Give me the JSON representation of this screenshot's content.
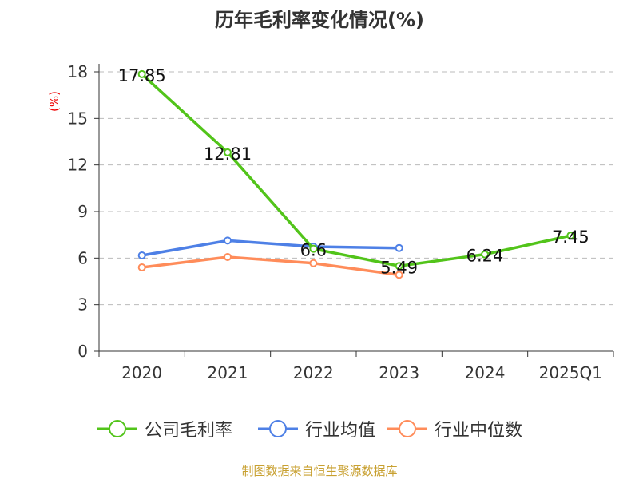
{
  "chart_data": {
    "type": "line",
    "title": "历年毛利率变化情况(%)",
    "ylabel": "(%)",
    "xlabel": "",
    "categories": [
      "2020",
      "2021",
      "2022",
      "2023",
      "2024",
      "2025Q1"
    ],
    "ylim": [
      0,
      18
    ],
    "yticks": [
      0,
      3,
      6,
      9,
      12,
      15,
      18
    ],
    "grid": true,
    "legend_position": "bottom",
    "series": [
      {
        "name": "公司毛利率",
        "color": "#52c41a",
        "values": [
          17.85,
          12.81,
          6.6,
          5.49,
          6.24,
          7.45
        ],
        "labels": [
          "17.85",
          "12.81",
          "6.6",
          "5.49",
          "6.24",
          "7.45"
        ]
      },
      {
        "name": "行业均值",
        "color": "#4e80e6",
        "values": [
          6.17,
          7.13,
          6.74,
          6.65,
          null,
          null
        ]
      },
      {
        "name": "行业中位数",
        "color": "#ff8c5a",
        "values": [
          5.4,
          6.07,
          5.67,
          4.92,
          null,
          null
        ]
      }
    ]
  },
  "footer": "制图数据来自恒生聚源数据库"
}
